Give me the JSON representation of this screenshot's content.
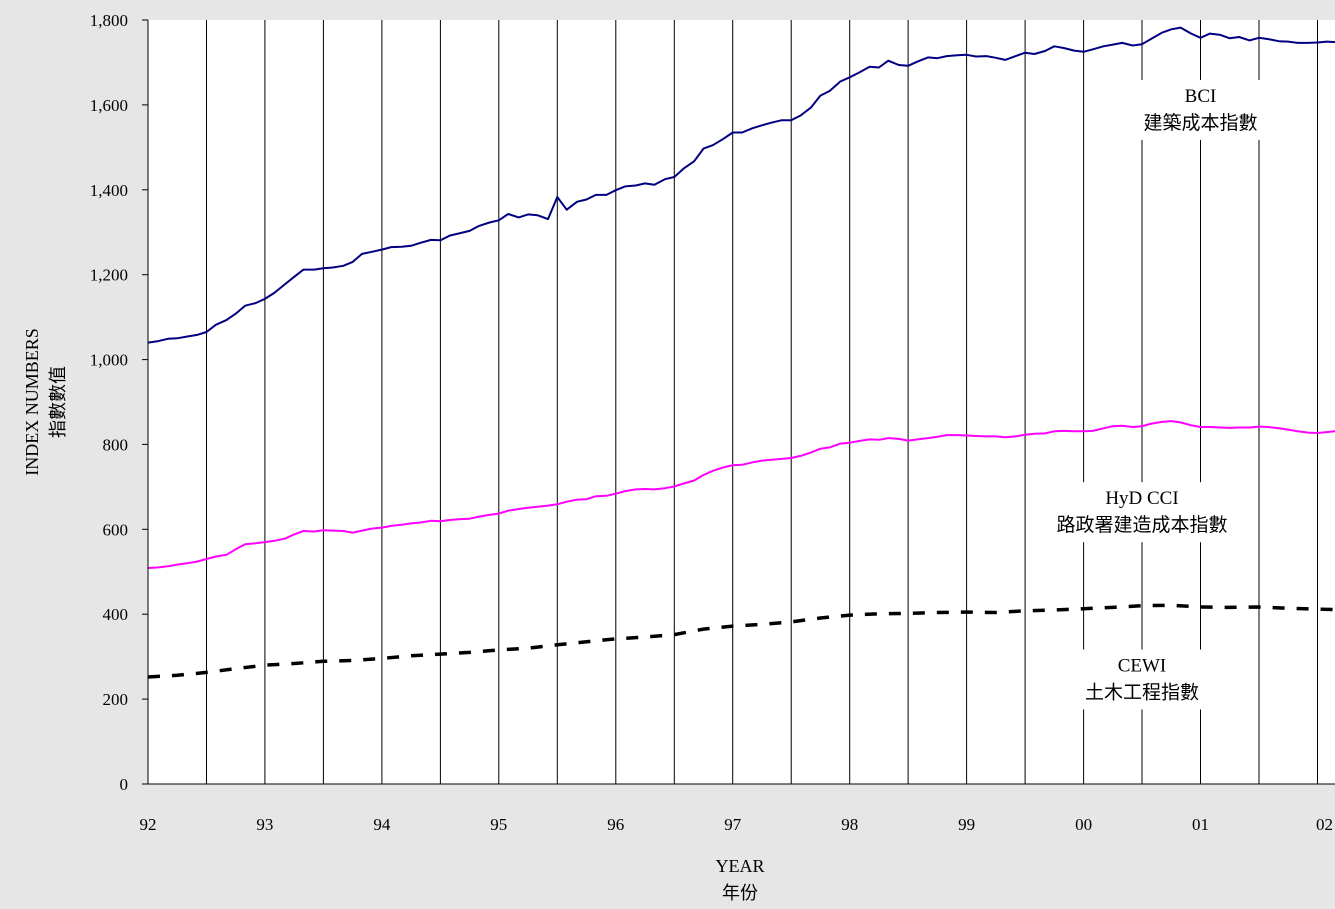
{
  "chart_data": {
    "type": "line",
    "xlabel": "YEAR",
    "xlabel_zh": "年份",
    "ylabel": "INDEX NUMBERS",
    "ylabel_zh": "指數數值",
    "ylim": [
      0,
      1800
    ],
    "yticks": [
      0,
      200,
      400,
      600,
      800,
      1000,
      1200,
      1400,
      1600,
      1800
    ],
    "ytick_labels": [
      "0",
      "200",
      "400",
      "600",
      "800",
      "1,000",
      "1,200",
      "1,400",
      "1,600",
      "1,800"
    ],
    "xlim": [
      1992,
      2002.15
    ],
    "xticks": [
      1992,
      1993,
      1994,
      1995,
      1996,
      1997,
      1998,
      1999,
      2000,
      2001,
      2002
    ],
    "xtick_labels": [
      "92",
      "93",
      "94",
      "95",
      "96",
      "97",
      "98",
      "99",
      "00",
      "01",
      "02"
    ],
    "grid": {
      "vertical_every": 0.5,
      "horizontal": "none"
    },
    "series": [
      {
        "name": "BCI",
        "name_zh": "建築成本指數",
        "color": "#000080",
        "style": "solid",
        "label_anchor": {
          "x": 2001.0,
          "y": 1560
        },
        "points": [
          [
            1992.0,
            1040
          ],
          [
            1992.08,
            1043
          ],
          [
            1992.17,
            1049
          ],
          [
            1992.25,
            1050
          ],
          [
            1992.33,
            1054
          ],
          [
            1992.42,
            1058
          ],
          [
            1992.5,
            1065
          ],
          [
            1992.58,
            1082
          ],
          [
            1992.67,
            1093
          ],
          [
            1992.75,
            1108
          ],
          [
            1992.83,
            1127
          ],
          [
            1992.92,
            1133
          ],
          [
            1993.0,
            1143
          ],
          [
            1993.08,
            1157
          ],
          [
            1993.17,
            1177
          ],
          [
            1993.25,
            1195
          ],
          [
            1993.33,
            1212
          ],
          [
            1993.42,
            1212
          ],
          [
            1993.5,
            1215
          ],
          [
            1993.58,
            1217
          ],
          [
            1993.67,
            1221
          ],
          [
            1993.75,
            1230
          ],
          [
            1993.83,
            1249
          ],
          [
            1993.92,
            1254
          ],
          [
            1994.0,
            1259
          ],
          [
            1994.08,
            1265
          ],
          [
            1994.17,
            1266
          ],
          [
            1994.25,
            1268
          ],
          [
            1994.33,
            1275
          ],
          [
            1994.42,
            1282
          ],
          [
            1994.5,
            1281
          ],
          [
            1994.58,
            1292
          ],
          [
            1994.67,
            1298
          ],
          [
            1994.75,
            1303
          ],
          [
            1994.83,
            1315
          ],
          [
            1994.92,
            1323
          ],
          [
            1995.0,
            1328
          ],
          [
            1995.08,
            1343
          ],
          [
            1995.17,
            1335
          ],
          [
            1995.25,
            1342
          ],
          [
            1995.33,
            1340
          ],
          [
            1995.42,
            1331
          ],
          [
            1995.5,
            1383
          ],
          [
            1995.58,
            1353
          ],
          [
            1995.67,
            1372
          ],
          [
            1995.75,
            1377
          ],
          [
            1995.83,
            1388
          ],
          [
            1995.92,
            1388
          ],
          [
            1996.0,
            1399
          ],
          [
            1996.08,
            1408
          ],
          [
            1996.17,
            1410
          ],
          [
            1996.25,
            1415
          ],
          [
            1996.33,
            1412
          ],
          [
            1996.42,
            1425
          ],
          [
            1996.5,
            1430
          ],
          [
            1996.58,
            1450
          ],
          [
            1996.67,
            1467
          ],
          [
            1996.75,
            1497
          ],
          [
            1996.83,
            1505
          ],
          [
            1996.92,
            1520
          ],
          [
            1997.0,
            1535
          ],
          [
            1997.08,
            1535
          ],
          [
            1997.17,
            1545
          ],
          [
            1997.25,
            1552
          ],
          [
            1997.33,
            1558
          ],
          [
            1997.42,
            1564
          ],
          [
            1997.5,
            1564
          ],
          [
            1997.58,
            1575
          ],
          [
            1997.67,
            1594
          ],
          [
            1997.75,
            1622
          ],
          [
            1997.83,
            1633
          ],
          [
            1997.92,
            1655
          ],
          [
            1998.0,
            1665
          ],
          [
            1998.08,
            1676
          ],
          [
            1998.17,
            1690
          ],
          [
            1998.25,
            1688
          ],
          [
            1998.33,
            1704
          ],
          [
            1998.42,
            1694
          ],
          [
            1998.5,
            1692
          ],
          [
            1998.58,
            1702
          ],
          [
            1998.67,
            1712
          ],
          [
            1998.75,
            1710
          ],
          [
            1998.83,
            1715
          ],
          [
            1998.92,
            1717
          ],
          [
            1999.0,
            1718
          ],
          [
            1999.08,
            1714
          ],
          [
            1999.17,
            1715
          ],
          [
            1999.25,
            1711
          ],
          [
            1999.33,
            1706
          ],
          [
            1999.42,
            1715
          ],
          [
            1999.5,
            1723
          ],
          [
            1999.58,
            1720
          ],
          [
            1999.67,
            1727
          ],
          [
            1999.75,
            1738
          ],
          [
            1999.83,
            1734
          ],
          [
            1999.92,
            1728
          ],
          [
            2000.0,
            1725
          ],
          [
            2000.08,
            1731
          ],
          [
            2000.17,
            1738
          ],
          [
            2000.25,
            1742
          ],
          [
            2000.33,
            1746
          ],
          [
            2000.42,
            1740
          ],
          [
            2000.5,
            1743
          ],
          [
            2000.58,
            1756
          ],
          [
            2000.67,
            1770
          ],
          [
            2000.75,
            1778
          ],
          [
            2000.83,
            1782
          ],
          [
            2000.92,
            1768
          ],
          [
            2001.0,
            1758
          ],
          [
            2001.08,
            1768
          ],
          [
            2001.17,
            1765
          ],
          [
            2001.25,
            1757
          ],
          [
            2001.33,
            1760
          ],
          [
            2001.42,
            1752
          ],
          [
            2001.5,
            1758
          ],
          [
            2001.58,
            1755
          ],
          [
            2001.67,
            1750
          ],
          [
            2001.75,
            1749
          ],
          [
            2001.83,
            1746
          ],
          [
            2001.92,
            1746
          ],
          [
            2002.0,
            1747
          ],
          [
            2002.08,
            1749
          ],
          [
            2002.15,
            1748
          ]
        ]
      },
      {
        "name": "HyD CCI",
        "name_zh": "路政署建造成本指數",
        "color": "#ff00ff",
        "style": "solid",
        "label_anchor": {
          "x": 2000.5,
          "y": 612
        },
        "points": [
          [
            1992.0,
            509
          ],
          [
            1992.08,
            510
          ],
          [
            1992.17,
            513
          ],
          [
            1992.25,
            517
          ],
          [
            1992.33,
            520
          ],
          [
            1992.42,
            524
          ],
          [
            1992.5,
            530
          ],
          [
            1992.58,
            536
          ],
          [
            1992.67,
            540
          ],
          [
            1992.75,
            553
          ],
          [
            1992.83,
            565
          ],
          [
            1992.92,
            567
          ],
          [
            1993.0,
            570
          ],
          [
            1993.08,
            573
          ],
          [
            1993.17,
            578
          ],
          [
            1993.25,
            588
          ],
          [
            1993.33,
            596
          ],
          [
            1993.42,
            595
          ],
          [
            1993.5,
            598
          ],
          [
            1993.58,
            597
          ],
          [
            1993.67,
            596
          ],
          [
            1993.75,
            592
          ],
          [
            1993.83,
            597
          ],
          [
            1993.92,
            602
          ],
          [
            1994.0,
            604
          ],
          [
            1994.08,
            608
          ],
          [
            1994.17,
            611
          ],
          [
            1994.25,
            614
          ],
          [
            1994.33,
            616
          ],
          [
            1994.42,
            620
          ],
          [
            1994.5,
            619
          ],
          [
            1994.58,
            622
          ],
          [
            1994.67,
            624
          ],
          [
            1994.75,
            625
          ],
          [
            1994.83,
            630
          ],
          [
            1994.92,
            634
          ],
          [
            1995.0,
            637
          ],
          [
            1995.08,
            644
          ],
          [
            1995.17,
            648
          ],
          [
            1995.25,
            651
          ],
          [
            1995.33,
            653
          ],
          [
            1995.42,
            656
          ],
          [
            1995.5,
            659
          ],
          [
            1995.58,
            665
          ],
          [
            1995.67,
            670
          ],
          [
            1995.75,
            671
          ],
          [
            1995.83,
            678
          ],
          [
            1995.92,
            679
          ],
          [
            1996.0,
            684
          ],
          [
            1996.08,
            690
          ],
          [
            1996.17,
            694
          ],
          [
            1996.25,
            695
          ],
          [
            1996.33,
            694
          ],
          [
            1996.42,
            697
          ],
          [
            1996.5,
            701
          ],
          [
            1996.58,
            708
          ],
          [
            1996.67,
            715
          ],
          [
            1996.75,
            728
          ],
          [
            1996.83,
            738
          ],
          [
            1996.92,
            746
          ],
          [
            1997.0,
            751
          ],
          [
            1997.08,
            752
          ],
          [
            1997.17,
            758
          ],
          [
            1997.25,
            762
          ],
          [
            1997.33,
            764
          ],
          [
            1997.42,
            766
          ],
          [
            1997.5,
            768
          ],
          [
            1997.58,
            773
          ],
          [
            1997.67,
            781
          ],
          [
            1997.75,
            790
          ],
          [
            1997.83,
            793
          ],
          [
            1997.92,
            802
          ],
          [
            1998.0,
            804
          ],
          [
            1998.08,
            808
          ],
          [
            1998.17,
            812
          ],
          [
            1998.25,
            811
          ],
          [
            1998.33,
            815
          ],
          [
            1998.42,
            813
          ],
          [
            1998.5,
            809
          ],
          [
            1998.58,
            812
          ],
          [
            1998.67,
            815
          ],
          [
            1998.75,
            818
          ],
          [
            1998.83,
            822
          ],
          [
            1998.92,
            822
          ],
          [
            1999.0,
            821
          ],
          [
            1999.08,
            820
          ],
          [
            1999.17,
            819
          ],
          [
            1999.25,
            819
          ],
          [
            1999.33,
            817
          ],
          [
            1999.42,
            819
          ],
          [
            1999.5,
            823
          ],
          [
            1999.58,
            825
          ],
          [
            1999.67,
            826
          ],
          [
            1999.75,
            831
          ],
          [
            1999.83,
            832
          ],
          [
            1999.92,
            831
          ],
          [
            2000.0,
            831
          ],
          [
            2000.08,
            832
          ],
          [
            2000.17,
            838
          ],
          [
            2000.25,
            843
          ],
          [
            2000.33,
            844
          ],
          [
            2000.42,
            841
          ],
          [
            2000.5,
            843
          ],
          [
            2000.58,
            849
          ],
          [
            2000.67,
            853
          ],
          [
            2000.75,
            855
          ],
          [
            2000.83,
            852
          ],
          [
            2000.92,
            845
          ],
          [
            2001.0,
            841
          ],
          [
            2001.08,
            841
          ],
          [
            2001.17,
            840
          ],
          [
            2001.25,
            839
          ],
          [
            2001.33,
            840
          ],
          [
            2001.42,
            840
          ],
          [
            2001.5,
            842
          ],
          [
            2001.58,
            841
          ],
          [
            2001.67,
            838
          ],
          [
            2001.75,
            835
          ],
          [
            2001.83,
            831
          ],
          [
            2001.92,
            828
          ],
          [
            2002.0,
            827
          ],
          [
            2002.08,
            829
          ],
          [
            2002.15,
            831
          ]
        ]
      },
      {
        "name": "CEWI",
        "name_zh": "土木工程指數",
        "color": "#000000",
        "style": "dashed",
        "label_anchor": {
          "x": 2000.5,
          "y": 218
        },
        "points": [
          [
            1992.0,
            252
          ],
          [
            1992.25,
            256
          ],
          [
            1992.5,
            263
          ],
          [
            1992.75,
            272
          ],
          [
            1993.0,
            280
          ],
          [
            1993.25,
            284
          ],
          [
            1993.5,
            289
          ],
          [
            1993.75,
            291
          ],
          [
            1994.0,
            296
          ],
          [
            1994.25,
            302
          ],
          [
            1994.5,
            306
          ],
          [
            1994.75,
            310
          ],
          [
            1995.0,
            316
          ],
          [
            1995.25,
            320
          ],
          [
            1995.5,
            328
          ],
          [
            1995.75,
            335
          ],
          [
            1996.0,
            342
          ],
          [
            1996.25,
            346
          ],
          [
            1996.5,
            352
          ],
          [
            1996.75,
            365
          ],
          [
            1997.0,
            372
          ],
          [
            1997.25,
            376
          ],
          [
            1997.5,
            382
          ],
          [
            1997.75,
            391
          ],
          [
            1998.0,
            398
          ],
          [
            1998.25,
            401
          ],
          [
            1998.5,
            402
          ],
          [
            1998.75,
            404
          ],
          [
            1999.0,
            405
          ],
          [
            1999.25,
            404
          ],
          [
            1999.5,
            408
          ],
          [
            1999.75,
            410
          ],
          [
            2000.0,
            413
          ],
          [
            2000.25,
            416
          ],
          [
            2000.5,
            420
          ],
          [
            2000.75,
            421
          ],
          [
            2001.0,
            417
          ],
          [
            2001.25,
            416
          ],
          [
            2001.5,
            417
          ],
          [
            2001.75,
            414
          ],
          [
            2002.0,
            412
          ],
          [
            2002.15,
            411
          ]
        ]
      }
    ]
  }
}
